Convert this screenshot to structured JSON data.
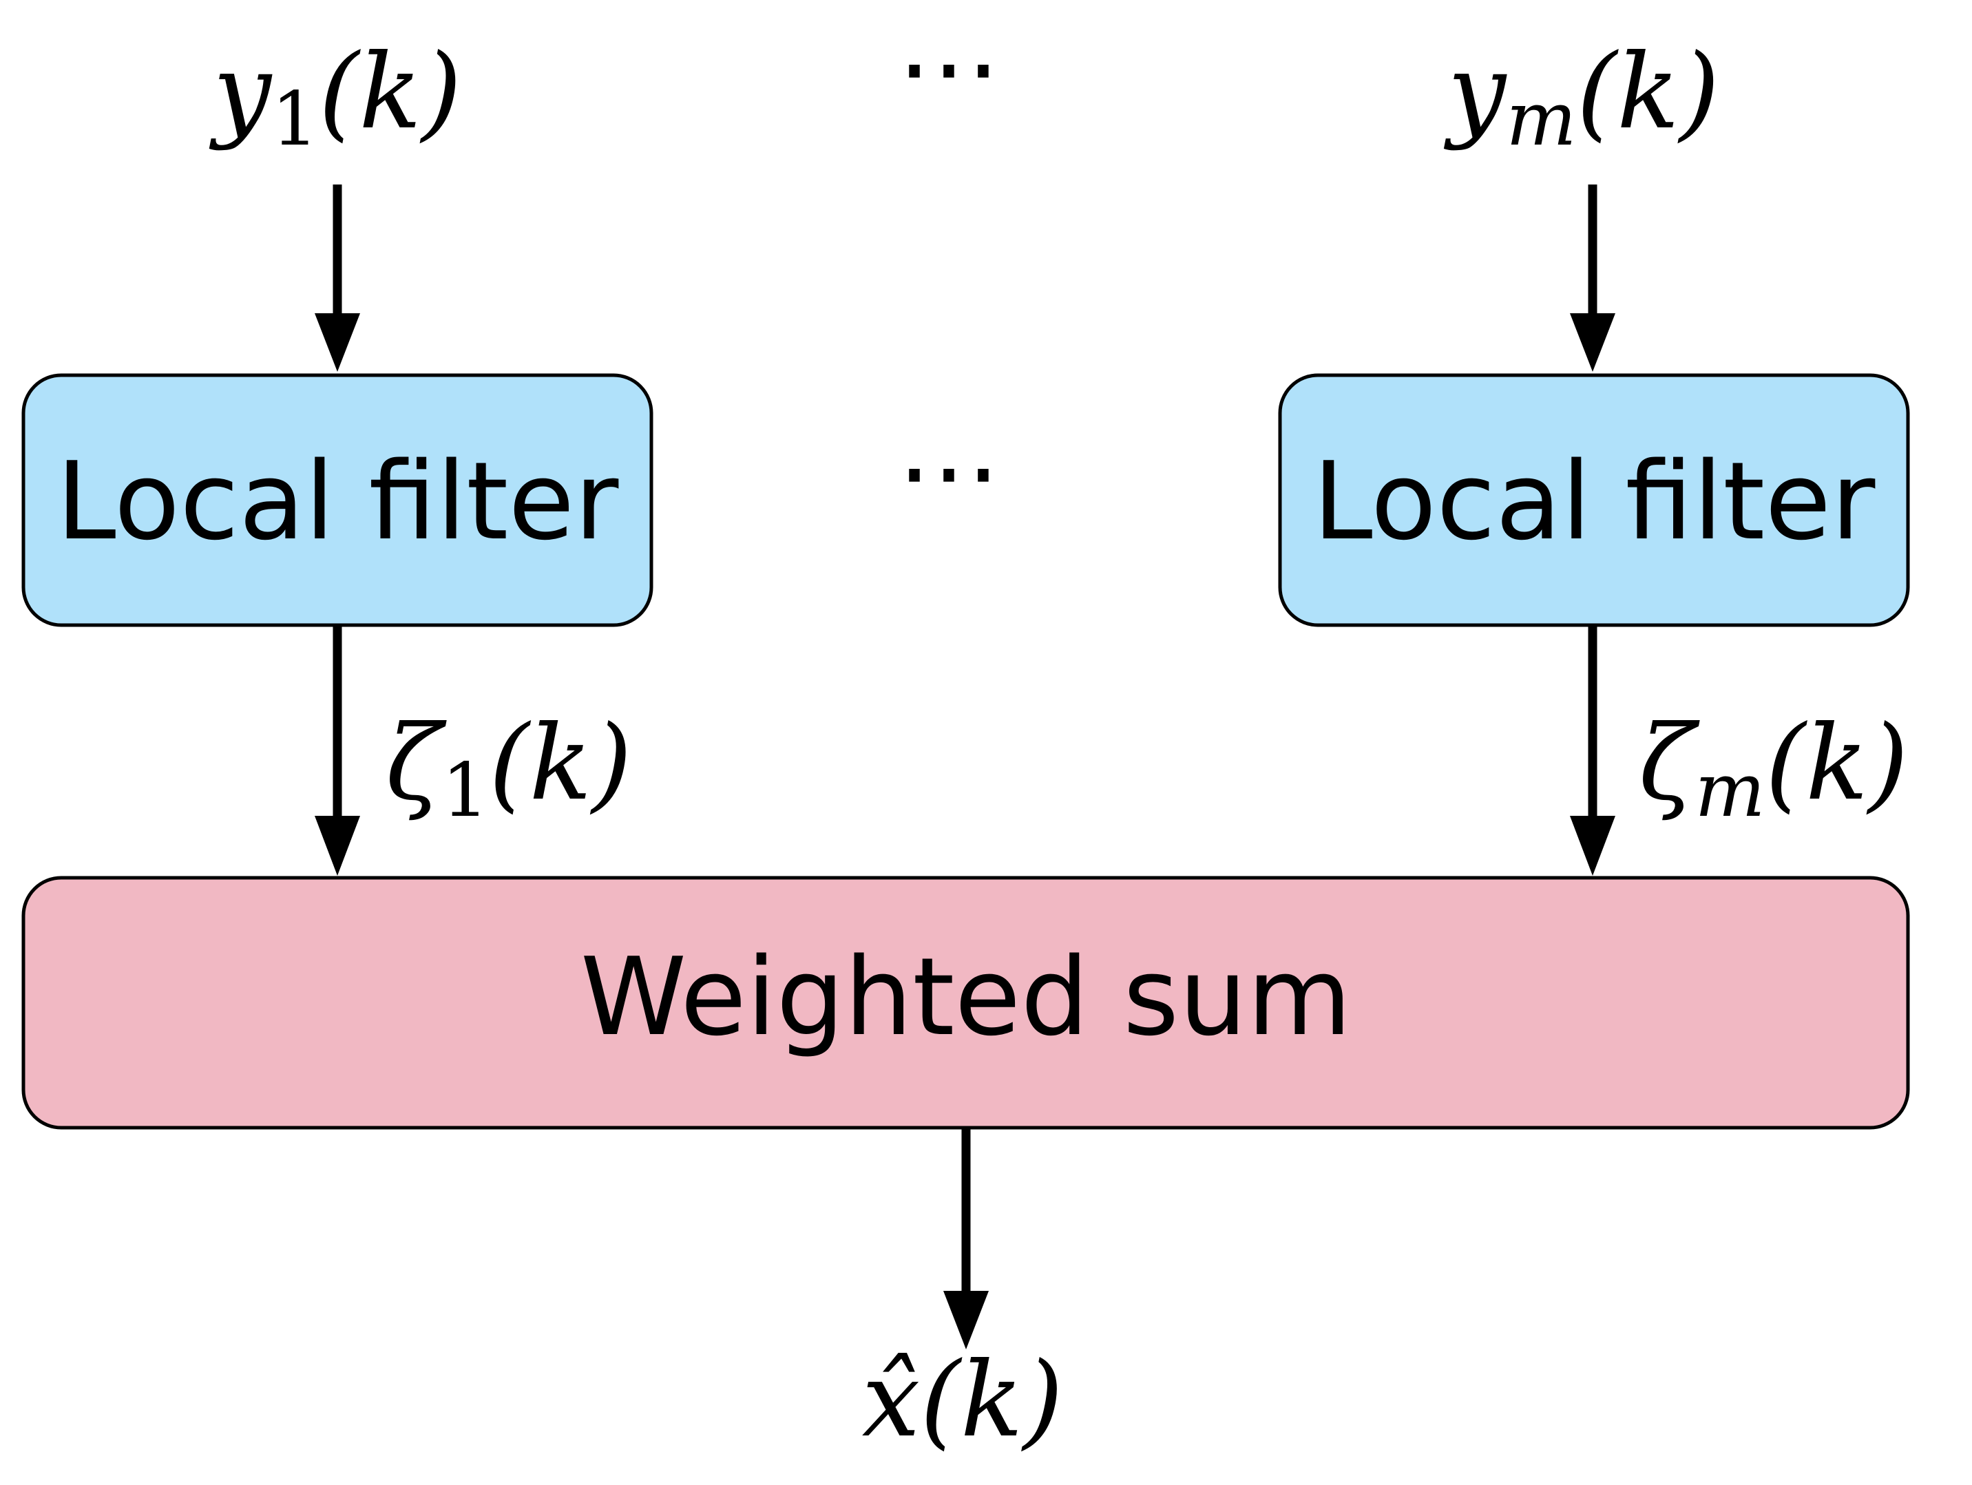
{
  "colors": {
    "local_filter_fill": "#B0E1FA",
    "weighted_sum_fill": "#F1B8C3",
    "stroke": "#000000"
  },
  "inputs": {
    "left": {
      "symbol": "y",
      "subscript": "1",
      "argument": "(k)"
    },
    "right": {
      "symbol": "y",
      "subscript": "m",
      "argument": "(k)"
    },
    "ellipsis": "⋯"
  },
  "filters": {
    "left_label": "Local filter",
    "right_label": "Local filter",
    "ellipsis": "⋯"
  },
  "intermediate": {
    "left": {
      "symbol": "ζ",
      "subscript": "1",
      "argument": "(k)"
    },
    "right": {
      "symbol": "ζ",
      "subscript": "m",
      "argument": "(k)"
    }
  },
  "combiner": {
    "label": "Weighted sum"
  },
  "output": {
    "symbol": "x̂",
    "argument": "(k)"
  }
}
